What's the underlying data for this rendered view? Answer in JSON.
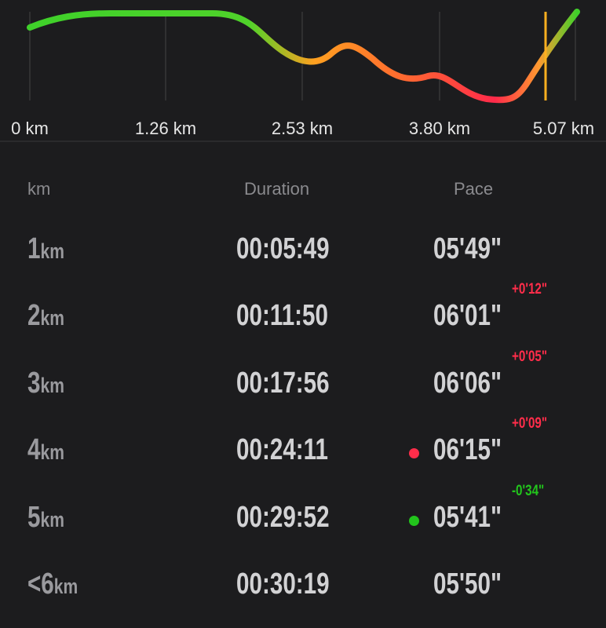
{
  "chart": {
    "xtick_labels": [
      "0 km",
      "1.26 km",
      "2.53 km",
      "3.80 km",
      "5.07 km"
    ]
  },
  "table": {
    "headers": [
      "km",
      "Duration",
      "Pace"
    ],
    "unit": "km",
    "rows": [
      {
        "km": "1",
        "duration": "00:05:49",
        "pace": "05'49\""
      },
      {
        "km": "2",
        "duration": "00:11:50",
        "pace": "06'01\"",
        "diff": "+0'12\"",
        "diff_color": "#ff2d4a"
      },
      {
        "km": "3",
        "duration": "00:17:56",
        "pace": "06'06\"",
        "diff": "+0'05\"",
        "diff_color": "#ff2d4a"
      },
      {
        "km": "4",
        "duration": "00:24:11",
        "pace": "06'15\"",
        "diff": "+0'09\"",
        "diff_color": "#ff2d4a",
        "dot_color": "#ff2d4a"
      },
      {
        "km": "5",
        "duration": "00:29:52",
        "pace": "05'41\"",
        "diff": "-0'34\"",
        "diff_color": "#22c41c",
        "dot_color": "#22c41c"
      },
      {
        "km": "<6",
        "duration": "00:30:19",
        "pace": "05'50\""
      }
    ]
  }
}
